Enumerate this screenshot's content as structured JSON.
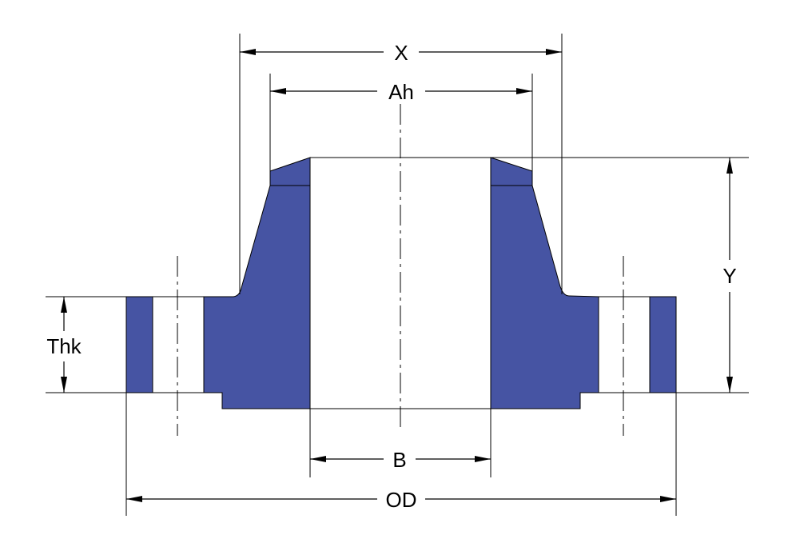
{
  "diagram": {
    "labels": {
      "x": "X",
      "ah": "Ah",
      "y": "Y",
      "thk": "Thk",
      "b": "B",
      "od": "OD"
    },
    "colors": {
      "flange_fill": "#4654A3",
      "line": "#000000",
      "background": "#ffffff"
    }
  }
}
